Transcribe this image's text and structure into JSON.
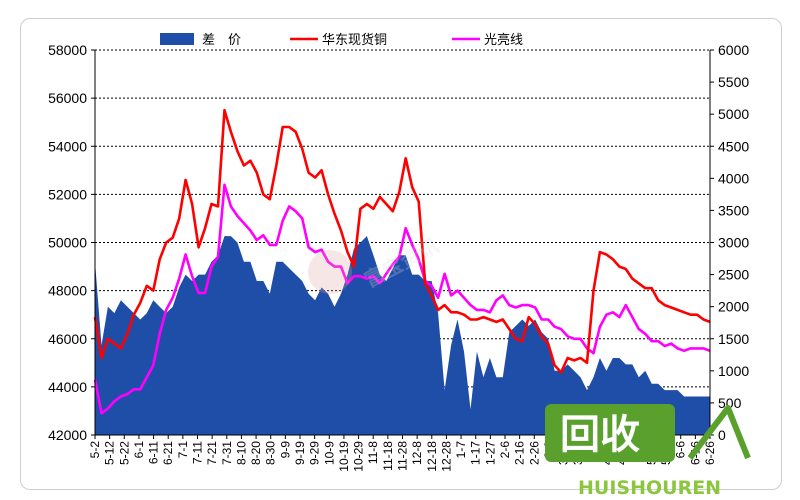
{
  "chart_data": {
    "type": "area+line",
    "legend": {
      "placement": "top",
      "items": [
        {
          "label": "差　价",
          "color": "#1f4ea8",
          "kind": "area"
        },
        {
          "label": "华东现货铜",
          "color": "#ff0000",
          "kind": "line"
        },
        {
          "label": "光亮线",
          "color": "#ff00ff",
          "kind": "line"
        }
      ]
    },
    "left_axis": {
      "min": 42000,
      "max": 58000,
      "ticks": [
        "42000",
        "44000",
        "46000",
        "48000",
        "50000",
        "52000",
        "54000",
        "56000",
        "58000"
      ]
    },
    "right_axis": {
      "min": 0,
      "max": 6000,
      "ticks": [
        "0",
        "500",
        "1000",
        "1500",
        "2000",
        "2500",
        "3000",
        "3500",
        "4000",
        "4500",
        "5000",
        "5500",
        "6000"
      ]
    },
    "x_ticks": [
      "5-2",
      "5-12",
      "5-22",
      "6-1",
      "6-11",
      "6-21",
      "7-1",
      "7-11",
      "7-21",
      "7-31",
      "8-10",
      "8-20",
      "8-30",
      "9-9",
      "9-19",
      "9-29",
      "10-9",
      "10-19",
      "10-29",
      "11-8",
      "11-18",
      "11-28",
      "12-8",
      "12-18",
      "12-28",
      "1-7",
      "1-17",
      "1-27",
      "2-6",
      "2-16",
      "2-26",
      "3-8",
      "3-18",
      "3-28",
      "4-7",
      "4-17",
      "4-27",
      "5-7",
      "5-17",
      "5-27",
      "6-6",
      "6-16",
      "6-26"
    ],
    "grid": {
      "horizontal": "dashed",
      "vertical": false
    },
    "series": [
      {
        "name": "华东现货铜",
        "axis": "left",
        "color": "#ff0000",
        "values": [
          46900,
          45200,
          46000,
          45800,
          45600,
          46200,
          47000,
          47500,
          48200,
          48000,
          49300,
          50000,
          50200,
          51000,
          52600,
          51600,
          49800,
          50600,
          51600,
          51500,
          55500,
          54600,
          53800,
          53200,
          53400,
          52900,
          52000,
          51800,
          53200,
          54800,
          54800,
          54600,
          53900,
          52900,
          52700,
          53000,
          52000,
          51200,
          50500,
          49600,
          49000,
          51400,
          51600,
          51400,
          51900,
          51600,
          51300,
          52100,
          53500,
          52300,
          51700,
          48300,
          47800,
          47200,
          47400,
          47100,
          47100,
          47000,
          46800,
          46800,
          46900,
          46800,
          46700,
          46800,
          46400,
          46000,
          45900,
          46900,
          46600,
          46100,
          45800,
          44900,
          44600,
          45200,
          45100,
          45200,
          45000,
          48000,
          49600,
          49500,
          49300,
          49000,
          48900,
          48500,
          48300,
          48100,
          48100,
          47600,
          47400,
          47300,
          47200,
          47100,
          47000,
          47000,
          46800,
          46700
        ]
      },
      {
        "name": "光亮线",
        "axis": "left",
        "color": "#ff00ff",
        "values": [
          44300,
          42900,
          43100,
          43400,
          43600,
          43700,
          43900,
          43900,
          44400,
          44900,
          46200,
          47200,
          47700,
          48500,
          49500,
          48600,
          47900,
          47900,
          49000,
          49400,
          52400,
          51500,
          51100,
          50800,
          50500,
          50100,
          50300,
          49900,
          49900,
          50900,
          51500,
          51300,
          51000,
          49800,
          49600,
          49700,
          49200,
          49000,
          49000,
          48300,
          48600,
          48600,
          48500,
          48600,
          48300,
          48700,
          49100,
          49400,
          50600,
          49900,
          49300,
          48400,
          48200,
          47700,
          48700,
          47800,
          48000,
          47700,
          47400,
          47200,
          47200,
          47100,
          47600,
          47800,
          47400,
          47300,
          47400,
          47400,
          47300,
          46800,
          46800,
          46500,
          46400,
          46100,
          46000,
          46000,
          45600,
          45400,
          46500,
          47000,
          47100,
          46900,
          47400,
          46900,
          46400,
          46200,
          45900,
          45900,
          45700,
          45800,
          45600,
          45500,
          45600,
          45600,
          45600,
          45500
        ]
      },
      {
        "name": "差价",
        "axis": "right",
        "color": "#1f4ea8",
        "values": [
          2700,
          1400,
          2000,
          1900,
          2100,
          2000,
          1900,
          1800,
          1900,
          2100,
          2000,
          1900,
          2000,
          2300,
          2500,
          2400,
          2500,
          2500,
          2700,
          2800,
          3100,
          3100,
          3000,
          2700,
          2700,
          2400,
          2400,
          2200,
          2700,
          2700,
          2600,
          2500,
          2400,
          2200,
          2100,
          2300,
          2200,
          2000,
          2200,
          2500,
          2900,
          3000,
          3100,
          2800,
          2500,
          2400,
          2600,
          2800,
          2800,
          2500,
          2500,
          2400,
          2400,
          1900,
          700,
          1400,
          1800,
          1300,
          400,
          1300,
          900,
          1200,
          900,
          900,
          1600,
          1700,
          1800,
          1700,
          1800,
          1600,
          1500,
          1000,
          1000,
          1100,
          1000,
          900,
          700,
          900,
          1200,
          1000,
          1200,
          1200,
          1100,
          1100,
          900,
          1000,
          800,
          800,
          700,
          700,
          700,
          600,
          600,
          600,
          600,
          600
        ]
      }
    ]
  },
  "watermarks": {
    "center_text": "富宝资讯",
    "logo_main": "回收",
    "logo_sub": "HUISHOUREN"
  }
}
